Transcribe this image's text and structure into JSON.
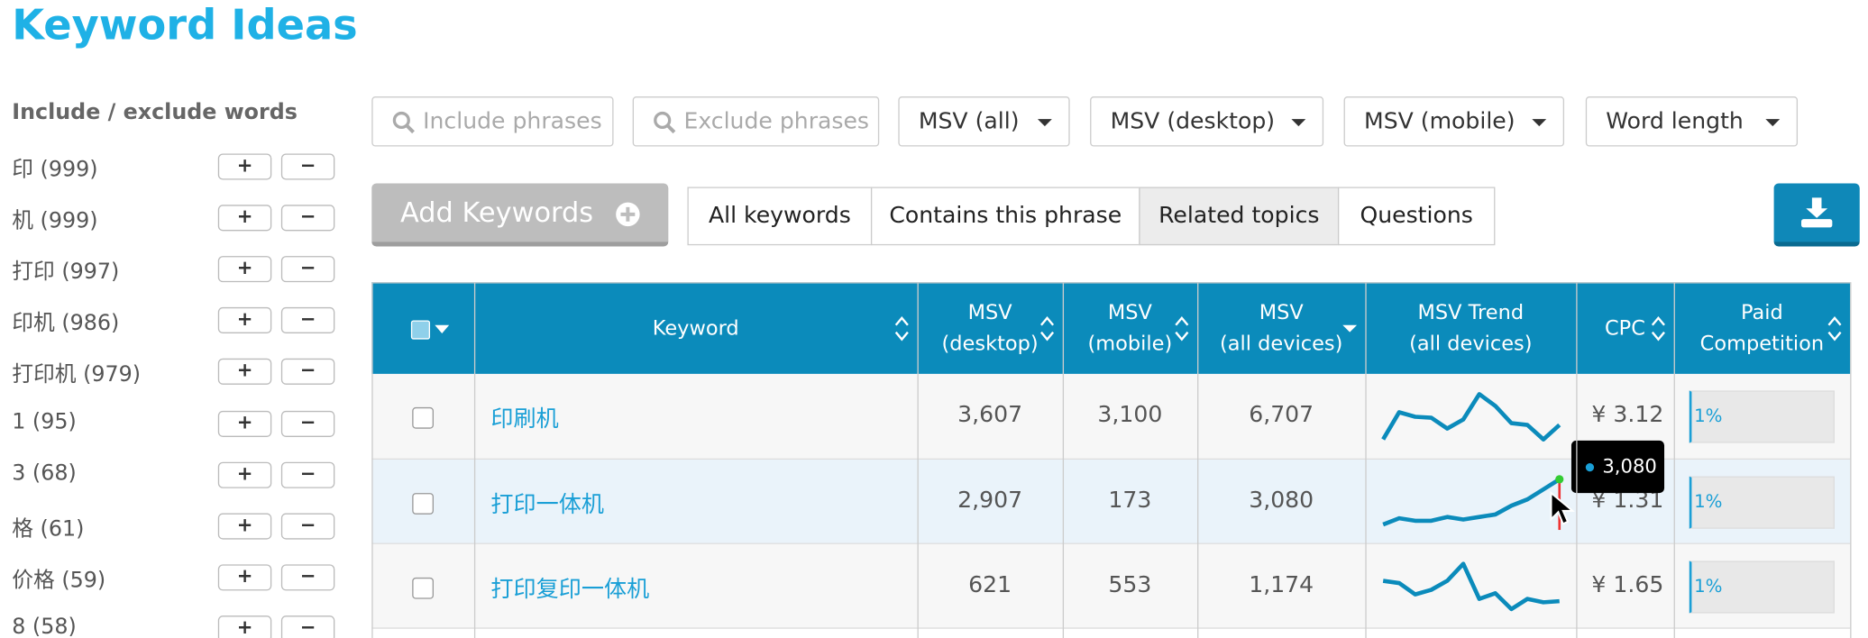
{
  "header": {
    "title": "Keyword Ideas"
  },
  "sidebar": {
    "title": "Include / exclude words",
    "words": [
      "印 (999)",
      "机 (999)",
      "打印 (997)",
      "印机 (986)",
      "打印机 (979)",
      "1 (95)",
      "3 (68)",
      "格 (61)",
      "价格 (59)",
      "8 (58)"
    ]
  },
  "filters": [
    "Include phrases",
    "Exclude phrases",
    "MSV (all)",
    "MSV (desktop)",
    "MSV (mobile)",
    "Word length"
  ],
  "add_button": "Add Keywords",
  "tabs": [
    "All keywords",
    "Contains this phrase",
    "Related topics",
    "Questions"
  ],
  "active_tab": 2,
  "table": {
    "columns": [
      [
        "Keyword"
      ],
      [
        "MSV",
        "(desktop)"
      ],
      [
        "MSV",
        "(mobile)"
      ],
      [
        "MSV",
        "(all devices)"
      ],
      [
        "MSV Trend",
        "(all devices)"
      ],
      [
        "CPC"
      ],
      [
        "Paid",
        "Competition"
      ]
    ],
    "rows": [
      {
        "keyword": "印刷机",
        "msv_desktop": "3,607",
        "msv_mobile": "3,100",
        "msv_all": "6,707",
        "trend": [
          400,
          700,
          650,
          640,
          520,
          620,
          900,
          770,
          580,
          560,
          400,
          560
        ],
        "cpc": "¥ 3.12",
        "paid": "1%"
      },
      {
        "keyword": "打印一体机",
        "msv_desktop": "2,907",
        "msv_mobile": "173",
        "msv_all": "3,080",
        "trend": [
          250,
          643,
          486,
          486,
          722,
          565,
          722,
          879,
          1429,
          1822,
          2451,
          3080
        ],
        "cpc": "¥ 1.31",
        "paid": "1%"
      },
      {
        "keyword": "打印复印一体机",
        "msv_desktop": "621",
        "msv_mobile": "553",
        "msv_all": "1,174",
        "trend": [
          130,
          120,
          70,
          90,
          130,
          205,
          50,
          75,
          5,
          50,
          35,
          40
        ],
        "cpc": "¥ 1.65",
        "paid": "1%"
      }
    ]
  },
  "tooltip": {
    "row": 1,
    "text": "3,080"
  }
}
